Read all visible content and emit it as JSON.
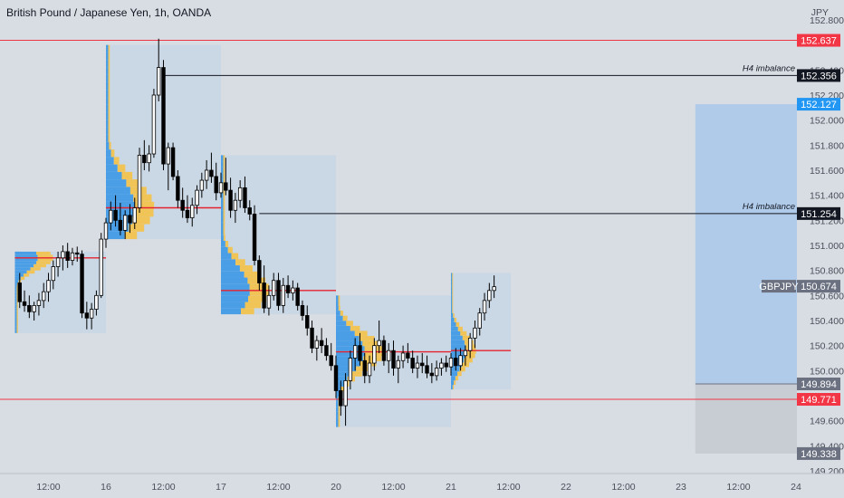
{
  "title": "British Pound / Japanese Yen, 1h, OANDA",
  "chart_data": {
    "type": "candlestick",
    "symbol": "GBPJPY",
    "currency": "JPY",
    "ylim": [
      149.2,
      152.8
    ],
    "y_ticks": [
      "152.800",
      "152.400",
      "152.200",
      "152.000",
      "151.800",
      "151.600",
      "151.400",
      "151.200",
      "151.000",
      "150.800",
      "150.600",
      "150.400",
      "150.200",
      "150.000",
      "149.600",
      "149.400",
      "149.200"
    ],
    "x_ticks": [
      "12:00",
      "16",
      "12:00",
      "17",
      "12:00",
      "20",
      "12:00",
      "21",
      "12:00",
      "22",
      "12:00",
      "23",
      "12:00",
      "24"
    ],
    "x_tick_hours": [
      -12,
      0,
      12,
      24,
      36,
      48,
      60,
      72,
      84,
      96,
      108,
      120,
      132,
      144
    ],
    "price_lines": [
      {
        "label": "152.637",
        "value": 152.637,
        "color": "#f23645",
        "line": true
      },
      {
        "label": "152.356",
        "value": 152.356,
        "color": "#131722",
        "line": true,
        "annotation": "H4 imbalance"
      },
      {
        "label": "152.127",
        "value": 152.127,
        "color": "#2196f3",
        "line": false
      },
      {
        "label": "151.254",
        "value": 151.254,
        "color": "#131722",
        "line": true,
        "annotation": "H4 imbalance"
      },
      {
        "label": "150.674",
        "value": 150.674,
        "color": "#6b7180",
        "line": false,
        "tag": "GBPJPY"
      },
      {
        "label": "149.894",
        "value": 149.894,
        "color": "#6b7180",
        "line": false
      },
      {
        "label": "149.771",
        "value": 149.771,
        "color": "#f23645",
        "line": true
      },
      {
        "label": "149.338",
        "value": 149.338,
        "color": "#6b7180",
        "line": false
      }
    ],
    "position": {
      "type": "long",
      "entry": 149.894,
      "target": 152.127,
      "stop": 149.338,
      "start_hour": 123,
      "end_hour": 144
    },
    "sessions": [
      {
        "start": -19,
        "end": 0,
        "high": 150.95,
        "low": 150.3,
        "poc": 150.9
      },
      {
        "start": 0,
        "end": 24,
        "high": 152.6,
        "low": 151.05,
        "poc": 151.3
      },
      {
        "start": 24,
        "end": 48,
        "high": 151.72,
        "low": 150.45,
        "poc": 150.64
      },
      {
        "start": 48,
        "end": 72,
        "high": 150.6,
        "low": 149.55,
        "poc": 150.15
      },
      {
        "start": 72,
        "end": 84.5,
        "high": 150.78,
        "low": 149.85,
        "poc": 150.16
      }
    ],
    "candles": [
      {
        "t": -18,
        "o": 150.7,
        "h": 150.78,
        "l": 150.5,
        "c": 150.55
      },
      {
        "t": -17,
        "o": 150.55,
        "h": 150.64,
        "l": 150.47,
        "c": 150.52
      },
      {
        "t": -16,
        "o": 150.52,
        "h": 150.6,
        "l": 150.42,
        "c": 150.47
      },
      {
        "t": -15,
        "o": 150.47,
        "h": 150.55,
        "l": 150.4,
        "c": 150.52
      },
      {
        "t": -14,
        "o": 150.52,
        "h": 150.62,
        "l": 150.44,
        "c": 150.56
      },
      {
        "t": -13,
        "o": 150.56,
        "h": 150.7,
        "l": 150.5,
        "c": 150.63
      },
      {
        "t": -12,
        "o": 150.63,
        "h": 150.78,
        "l": 150.55,
        "c": 150.72
      },
      {
        "t": -11,
        "o": 150.72,
        "h": 150.88,
        "l": 150.65,
        "c": 150.83
      },
      {
        "t": -10,
        "o": 150.83,
        "h": 150.95,
        "l": 150.75,
        "c": 150.9
      },
      {
        "t": -9,
        "o": 150.9,
        "h": 151.0,
        "l": 150.8,
        "c": 150.95
      },
      {
        "t": -8,
        "o": 150.95,
        "h": 151.02,
        "l": 150.82,
        "c": 150.88
      },
      {
        "t": -7,
        "o": 150.88,
        "h": 150.98,
        "l": 150.84,
        "c": 150.94
      },
      {
        "t": -6,
        "o": 150.94,
        "h": 150.99,
        "l": 150.87,
        "c": 150.93
      },
      {
        "t": -5,
        "o": 150.93,
        "h": 150.96,
        "l": 150.42,
        "c": 150.46
      },
      {
        "t": -4,
        "o": 150.46,
        "h": 150.55,
        "l": 150.33,
        "c": 150.42
      },
      {
        "t": -3,
        "o": 150.42,
        "h": 150.54,
        "l": 150.33,
        "c": 150.49
      },
      {
        "t": -2,
        "o": 150.49,
        "h": 150.64,
        "l": 150.44,
        "c": 150.6
      },
      {
        "t": -1,
        "o": 150.6,
        "h": 151.1,
        "l": 150.58,
        "c": 151.05
      },
      {
        "t": 0,
        "o": 151.05,
        "h": 151.22,
        "l": 150.98,
        "c": 151.18
      },
      {
        "t": 1,
        "o": 151.18,
        "h": 151.35,
        "l": 151.12,
        "c": 151.28
      },
      {
        "t": 2,
        "o": 151.28,
        "h": 151.4,
        "l": 151.15,
        "c": 151.2
      },
      {
        "t": 3,
        "o": 151.2,
        "h": 151.34,
        "l": 151.08,
        "c": 151.12
      },
      {
        "t": 4,
        "o": 151.12,
        "h": 151.28,
        "l": 151.05,
        "c": 151.24
      },
      {
        "t": 5,
        "o": 151.24,
        "h": 151.33,
        "l": 151.1,
        "c": 151.18
      },
      {
        "t": 6,
        "o": 151.18,
        "h": 151.38,
        "l": 151.13,
        "c": 151.3
      },
      {
        "t": 7,
        "o": 151.3,
        "h": 151.78,
        "l": 151.26,
        "c": 151.72
      },
      {
        "t": 8,
        "o": 151.72,
        "h": 151.84,
        "l": 151.6,
        "c": 151.66
      },
      {
        "t": 9,
        "o": 151.66,
        "h": 151.8,
        "l": 151.59,
        "c": 151.73
      },
      {
        "t": 10,
        "o": 151.73,
        "h": 152.25,
        "l": 151.7,
        "c": 152.2
      },
      {
        "t": 11,
        "o": 152.2,
        "h": 152.65,
        "l": 152.15,
        "c": 152.42
      },
      {
        "t": 12,
        "o": 152.42,
        "h": 152.48,
        "l": 151.6,
        "c": 151.65
      },
      {
        "t": 13,
        "o": 151.65,
        "h": 151.82,
        "l": 151.44,
        "c": 151.78
      },
      {
        "t": 14,
        "o": 151.78,
        "h": 151.82,
        "l": 151.52,
        "c": 151.55
      },
      {
        "t": 15,
        "o": 151.55,
        "h": 151.6,
        "l": 151.3,
        "c": 151.36
      },
      {
        "t": 16,
        "o": 151.36,
        "h": 151.46,
        "l": 151.22,
        "c": 151.28
      },
      {
        "t": 17,
        "o": 151.28,
        "h": 151.4,
        "l": 151.18,
        "c": 151.22
      },
      {
        "t": 18,
        "o": 151.22,
        "h": 151.38,
        "l": 151.15,
        "c": 151.32
      },
      {
        "t": 19,
        "o": 151.32,
        "h": 151.48,
        "l": 151.25,
        "c": 151.44
      },
      {
        "t": 20,
        "o": 151.44,
        "h": 151.58,
        "l": 151.38,
        "c": 151.52
      },
      {
        "t": 21,
        "o": 151.52,
        "h": 151.68,
        "l": 151.45,
        "c": 151.6
      },
      {
        "t": 22,
        "o": 151.6,
        "h": 151.74,
        "l": 151.5,
        "c": 151.55
      },
      {
        "t": 23,
        "o": 151.55,
        "h": 151.66,
        "l": 151.36,
        "c": 151.42
      },
      {
        "t": 24,
        "o": 151.42,
        "h": 151.58,
        "l": 151.38,
        "c": 151.5
      },
      {
        "t": 25,
        "o": 151.5,
        "h": 151.7,
        "l": 151.4,
        "c": 151.44
      },
      {
        "t": 26,
        "o": 151.44,
        "h": 151.54,
        "l": 151.22,
        "c": 151.28
      },
      {
        "t": 27,
        "o": 151.28,
        "h": 151.42,
        "l": 151.18,
        "c": 151.36
      },
      {
        "t": 28,
        "o": 151.36,
        "h": 151.52,
        "l": 151.3,
        "c": 151.46
      },
      {
        "t": 29,
        "o": 151.46,
        "h": 151.55,
        "l": 151.26,
        "c": 151.3
      },
      {
        "t": 30,
        "o": 151.3,
        "h": 151.36,
        "l": 151.2,
        "c": 151.25
      },
      {
        "t": 31,
        "o": 151.25,
        "h": 151.32,
        "l": 150.84,
        "c": 150.88
      },
      {
        "t": 32,
        "o": 150.88,
        "h": 150.92,
        "l": 150.64,
        "c": 150.7
      },
      {
        "t": 33,
        "o": 150.7,
        "h": 150.84,
        "l": 150.46,
        "c": 150.5
      },
      {
        "t": 34,
        "o": 150.5,
        "h": 150.68,
        "l": 150.44,
        "c": 150.6
      },
      {
        "t": 35,
        "o": 150.6,
        "h": 150.78,
        "l": 150.56,
        "c": 150.72
      },
      {
        "t": 36,
        "o": 150.72,
        "h": 150.78,
        "l": 150.48,
        "c": 150.52
      },
      {
        "t": 37,
        "o": 150.52,
        "h": 150.74,
        "l": 150.46,
        "c": 150.68
      },
      {
        "t": 38,
        "o": 150.68,
        "h": 150.76,
        "l": 150.58,
        "c": 150.62
      },
      {
        "t": 39,
        "o": 150.62,
        "h": 150.72,
        "l": 150.56,
        "c": 150.66
      },
      {
        "t": 40,
        "o": 150.66,
        "h": 150.7,
        "l": 150.48,
        "c": 150.52
      },
      {
        "t": 41,
        "o": 150.52,
        "h": 150.56,
        "l": 150.4,
        "c": 150.44
      },
      {
        "t": 42,
        "o": 150.44,
        "h": 150.52,
        "l": 150.28,
        "c": 150.34
      },
      {
        "t": 43,
        "o": 150.34,
        "h": 150.4,
        "l": 150.14,
        "c": 150.18
      },
      {
        "t": 44,
        "o": 150.18,
        "h": 150.28,
        "l": 150.08,
        "c": 150.24
      },
      {
        "t": 45,
        "o": 150.24,
        "h": 150.34,
        "l": 150.14,
        "c": 150.2
      },
      {
        "t": 46,
        "o": 150.2,
        "h": 150.26,
        "l": 150.08,
        "c": 150.12
      },
      {
        "t": 47,
        "o": 150.12,
        "h": 150.22,
        "l": 150.0,
        "c": 150.04
      },
      {
        "t": 48,
        "o": 150.04,
        "h": 150.12,
        "l": 149.78,
        "c": 149.84
      },
      {
        "t": 49,
        "o": 149.84,
        "h": 149.92,
        "l": 149.64,
        "c": 149.72
      },
      {
        "t": 50,
        "o": 149.72,
        "h": 149.98,
        "l": 149.56,
        "c": 149.92
      },
      {
        "t": 51,
        "o": 149.92,
        "h": 150.16,
        "l": 149.85,
        "c": 150.1
      },
      {
        "t": 52,
        "o": 150.1,
        "h": 150.26,
        "l": 150.0,
        "c": 150.2
      },
      {
        "t": 53,
        "o": 150.2,
        "h": 150.3,
        "l": 150.04,
        "c": 150.08
      },
      {
        "t": 54,
        "o": 150.08,
        "h": 150.14,
        "l": 149.9,
        "c": 149.96
      },
      {
        "t": 55,
        "o": 149.96,
        "h": 150.12,
        "l": 149.9,
        "c": 150.06
      },
      {
        "t": 56,
        "o": 150.06,
        "h": 150.26,
        "l": 150.0,
        "c": 150.2
      },
      {
        "t": 57,
        "o": 150.2,
        "h": 150.4,
        "l": 150.14,
        "c": 150.24
      },
      {
        "t": 58,
        "o": 150.24,
        "h": 150.28,
        "l": 150.04,
        "c": 150.08
      },
      {
        "t": 59,
        "o": 150.08,
        "h": 150.22,
        "l": 149.98,
        "c": 150.16
      },
      {
        "t": 60,
        "o": 150.16,
        "h": 150.24,
        "l": 149.96,
        "c": 150.02
      },
      {
        "t": 61,
        "o": 150.02,
        "h": 150.12,
        "l": 149.9,
        "c": 150.08
      },
      {
        "t": 62,
        "o": 150.08,
        "h": 150.2,
        "l": 150.02,
        "c": 150.14
      },
      {
        "t": 63,
        "o": 150.14,
        "h": 150.22,
        "l": 150.06,
        "c": 150.1
      },
      {
        "t": 64,
        "o": 150.1,
        "h": 150.16,
        "l": 149.98,
        "c": 150.02
      },
      {
        "t": 65,
        "o": 150.02,
        "h": 150.12,
        "l": 149.94,
        "c": 150.06
      },
      {
        "t": 66,
        "o": 150.06,
        "h": 150.14,
        "l": 149.98,
        "c": 150.04
      },
      {
        "t": 67,
        "o": 150.04,
        "h": 150.12,
        "l": 149.94,
        "c": 149.98
      },
      {
        "t": 68,
        "o": 149.98,
        "h": 150.06,
        "l": 149.9,
        "c": 149.96
      },
      {
        "t": 69,
        "o": 149.96,
        "h": 150.08,
        "l": 149.92,
        "c": 150.02
      },
      {
        "t": 70,
        "o": 150.02,
        "h": 150.1,
        "l": 149.96,
        "c": 150.06
      },
      {
        "t": 71,
        "o": 150.06,
        "h": 150.12,
        "l": 149.99,
        "c": 150.03
      },
      {
        "t": 72,
        "o": 150.03,
        "h": 150.14,
        "l": 149.96,
        "c": 150.1
      },
      {
        "t": 73,
        "o": 150.1,
        "h": 150.18,
        "l": 150.0,
        "c": 150.04
      },
      {
        "t": 74,
        "o": 150.04,
        "h": 150.18,
        "l": 150.0,
        "c": 150.12
      },
      {
        "t": 75,
        "o": 150.12,
        "h": 150.2,
        "l": 150.04,
        "c": 150.16
      },
      {
        "t": 76,
        "o": 150.16,
        "h": 150.3,
        "l": 150.1,
        "c": 150.26
      },
      {
        "t": 77,
        "o": 150.26,
        "h": 150.4,
        "l": 150.18,
        "c": 150.34
      },
      {
        "t": 78,
        "o": 150.34,
        "h": 150.5,
        "l": 150.28,
        "c": 150.46
      },
      {
        "t": 79,
        "o": 150.46,
        "h": 150.62,
        "l": 150.4,
        "c": 150.56
      },
      {
        "t": 80,
        "o": 150.56,
        "h": 150.7,
        "l": 150.5,
        "c": 150.64
      },
      {
        "t": 81,
        "o": 150.64,
        "h": 150.76,
        "l": 150.58,
        "c": 150.67
      }
    ]
  }
}
